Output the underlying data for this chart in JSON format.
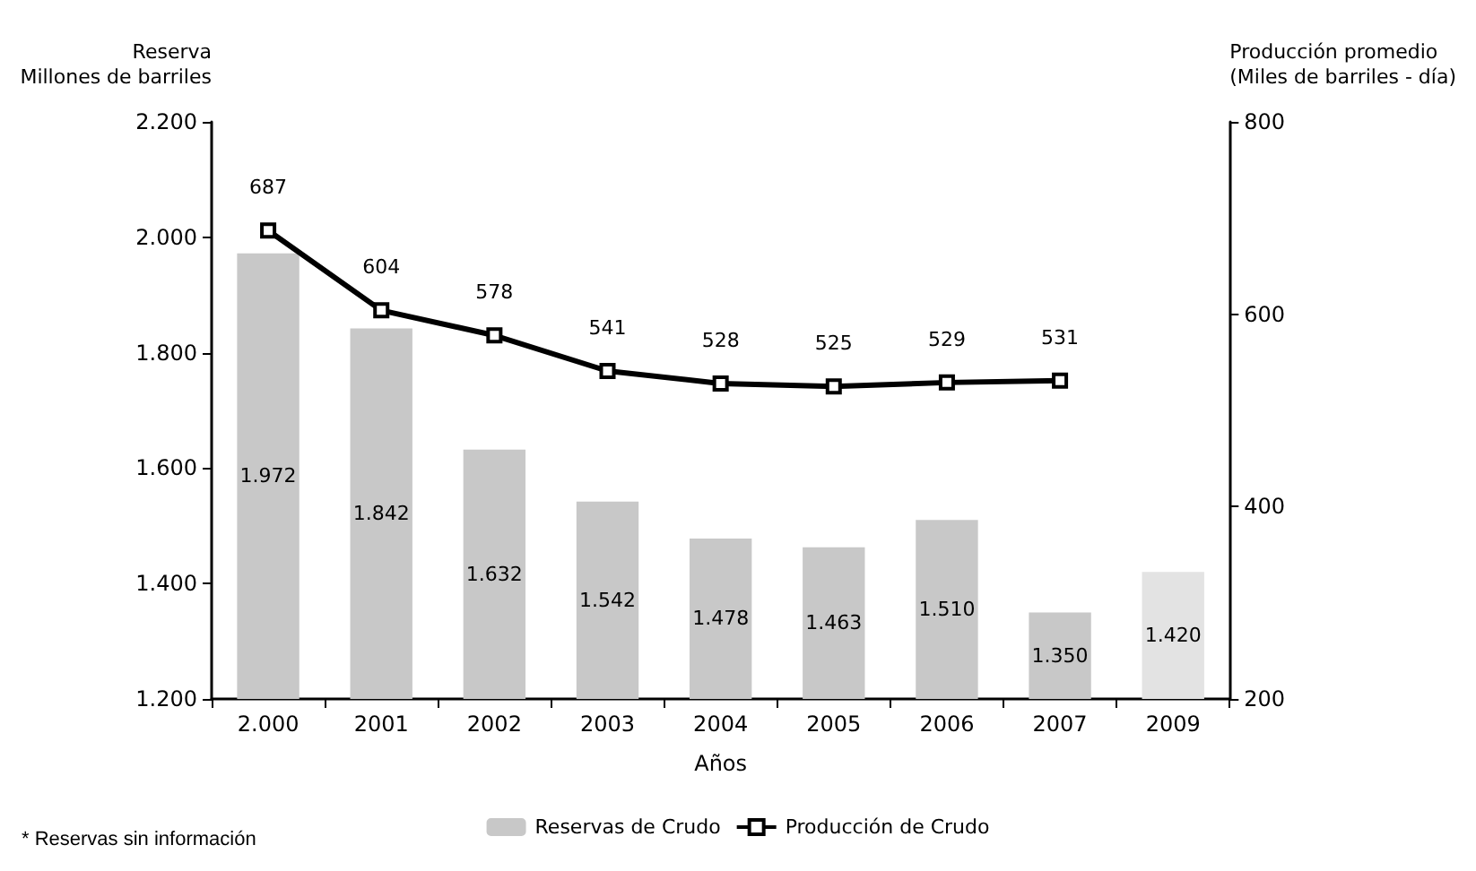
{
  "chart_data": {
    "type": "bar",
    "xlabel": "Años",
    "ylabel": "Reserva\nMillones de barriles",
    "y2label": "Producción promedio\n(Miles de barriles - día)",
    "categories": [
      "2.000",
      "2001",
      "2002",
      "2003",
      "2004",
      "2005",
      "2006",
      "2007",
      "2009"
    ],
    "series": [
      {
        "name": "Reservas de Crudo",
        "colors": [
          "#c8c8c8",
          "#c8c8c8",
          "#c8c8c8",
          "#c8c8c8",
          "#c8c8c8",
          "#c8c8c8",
          "#c8c8c8",
          "#c8c8c8",
          "#e3e3e3"
        ],
        "values": [
          1972,
          1842,
          1632,
          1542,
          1478,
          1463,
          1510,
          1350,
          1420
        ],
        "value_labels": [
          "1.972",
          "1.842",
          "1.632",
          "1.542",
          "1.478",
          "1.463",
          "1.510",
          "1.350",
          "1.420"
        ]
      },
      {
        "name": "Producción de Crudo",
        "type": "line",
        "axis": "y2",
        "color": "#000000",
        "marker": "square",
        "values": [
          687,
          604,
          578,
          541,
          528,
          525,
          529,
          531,
          null
        ],
        "value_labels": [
          "687",
          "604",
          "578",
          "541",
          "528",
          "525",
          "529",
          "531",
          null
        ]
      }
    ],
    "ylim": [
      1200,
      2200
    ],
    "yticks": [
      {
        "value": 1200,
        "label": "1.200"
      },
      {
        "value": 1400,
        "label": "1.400"
      },
      {
        "value": 1600,
        "label": "1.600"
      },
      {
        "value": 1800,
        "label": "1.800"
      },
      {
        "value": 2000,
        "label": "2.000"
      },
      {
        "value": 2200,
        "label": "2.200"
      }
    ],
    "y2lim": [
      200,
      800
    ],
    "y2ticks": [
      200,
      400,
      600,
      800
    ],
    "grid": false,
    "legend": "bottom",
    "annotations": [
      "* Reservas sin información"
    ]
  }
}
